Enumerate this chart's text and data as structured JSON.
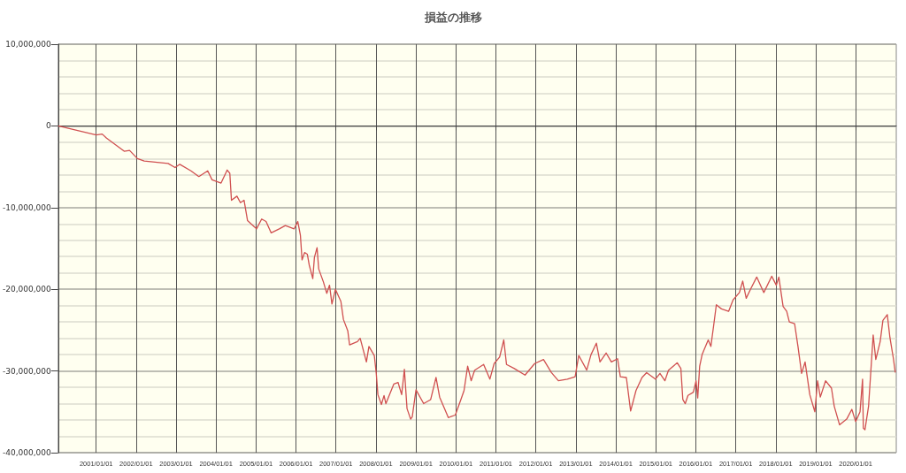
{
  "chart_data": {
    "type": "line",
    "title": "損益の推移",
    "grid": true,
    "marker": "none",
    "line_style": "solid",
    "xlim": [
      "2000-01-20",
      "2021-01-06"
    ],
    "xticks": [
      {
        "value": "2001-01-01",
        "label": "2001/01/01"
      },
      {
        "value": "2002-01-01",
        "label": "2002/01/01"
      },
      {
        "value": "2003-01-01",
        "label": "2003/01/01"
      },
      {
        "value": "2004-01-01",
        "label": "2004/01/01"
      },
      {
        "value": "2005-01-01",
        "label": "2005/01/01"
      },
      {
        "value": "2006-01-01",
        "label": "2006/01/01"
      },
      {
        "value": "2007-01-01",
        "label": "2007/01/01"
      },
      {
        "value": "2008-01-01",
        "label": "2008/01/01"
      },
      {
        "value": "2009-01-01",
        "label": "2009/01/01"
      },
      {
        "value": "2010-01-01",
        "label": "2010/01/01"
      },
      {
        "value": "2011-01-01",
        "label": "2011/01/01"
      },
      {
        "value": "2012-01-01",
        "label": "2012/01/01"
      },
      {
        "value": "2013-01-01",
        "label": "2013/01/01"
      },
      {
        "value": "2014-01-01",
        "label": "2014/01/01"
      },
      {
        "value": "2015-01-01",
        "label": "2015/01/01"
      },
      {
        "value": "2016-01-01",
        "label": "2016/01/01"
      },
      {
        "value": "2017-01-01",
        "label": "2017/01/01"
      },
      {
        "value": "2018-01-01",
        "label": "2018/01/01"
      },
      {
        "value": "2019-01-01",
        "label": "2019/01/01"
      },
      {
        "value": "2020-01-01",
        "label": "2020/01/01"
      }
    ],
    "ylim": [
      -40000000,
      10000000
    ],
    "yticks": [
      {
        "value": -40000000,
        "label": "-40,000,000"
      },
      {
        "value": -38000000,
        "label": null
      },
      {
        "value": -36000000,
        "label": null
      },
      {
        "value": -34000000,
        "label": null
      },
      {
        "value": -32000000,
        "label": null
      },
      {
        "value": -30000000,
        "label": "-30,000,000"
      },
      {
        "value": -28000000,
        "label": null
      },
      {
        "value": -26000000,
        "label": null
      },
      {
        "value": -24000000,
        "label": null
      },
      {
        "value": -22000000,
        "label": null
      },
      {
        "value": -20000000,
        "label": "-20,000,000"
      },
      {
        "value": -18000000,
        "label": null
      },
      {
        "value": -16000000,
        "label": null
      },
      {
        "value": -14000000,
        "label": null
      },
      {
        "value": -12000000,
        "label": null
      },
      {
        "value": -10000000,
        "label": "-10,000,000"
      },
      {
        "value": -8000000,
        "label": null
      },
      {
        "value": -6000000,
        "label": null
      },
      {
        "value": -4000000,
        "label": null
      },
      {
        "value": -2000000,
        "label": null
      },
      {
        "value": 0,
        "label": "0"
      },
      {
        "value": 2000000,
        "label": null
      },
      {
        "value": 4000000,
        "label": null
      },
      {
        "value": 6000000,
        "label": null
      },
      {
        "value": 8000000,
        "label": null
      },
      {
        "value": 10000000,
        "label": "10,000,000"
      }
    ],
    "x": [
      "2000-01-20",
      "2001-01-01",
      "2001-02-25",
      "2001-04-06",
      "2001-09-14",
      "2001-11-02",
      "2002-01-13",
      "2002-03-16",
      "2002-10-20",
      "2002-12-23",
      "2003-02-04",
      "2003-05-17",
      "2003-07-28",
      "2003-10-17",
      "2003-11-26",
      "2004-02-16",
      "2004-04-12",
      "2004-05-06",
      "2004-05-21",
      "2004-07-10",
      "2004-08-11",
      "2004-09-13",
      "2004-10-15",
      "2005-01-05",
      "2005-02-21",
      "2005-04-02",
      "2005-05-19",
      "2005-08-01",
      "2005-09-25",
      "2005-12-15",
      "2006-01-17",
      "2006-02-10",
      "2006-02-25",
      "2006-03-20",
      "2006-04-14",
      "2006-05-01",
      "2006-06-03",
      "2006-06-18",
      "2006-07-12",
      "2006-07-27",
      "2006-09-08",
      "2006-10-09",
      "2006-11-03",
      "2006-11-25",
      "2006-12-27",
      "2007-02-15",
      "2007-03-10",
      "2007-04-19",
      "2007-05-05",
      "2007-07-16",
      "2007-08-10",
      "2007-10-06",
      "2007-10-29",
      "2007-12-17",
      "2008-01-04",
      "2008-01-19",
      "2008-02-20",
      "2008-03-15",
      "2008-04-01",
      "2008-06-12",
      "2008-07-21",
      "2008-08-23",
      "2008-09-17",
      "2008-10-11",
      "2008-11-13",
      "2008-11-28",
      "2009-01-01",
      "2009-03-12",
      "2009-05-15",
      "2009-07-03",
      "2009-08-05",
      "2009-10-01",
      "2009-10-23",
      "2009-12-26",
      "2010-02-15",
      "2010-03-16",
      "2010-04-18",
      "2010-05-20",
      "2010-06-21",
      "2010-09-11",
      "2010-11-07",
      "2010-12-16",
      "2011-02-04",
      "2011-03-14",
      "2011-04-08",
      "2011-06-19",
      "2011-09-24",
      "2011-12-21",
      "2012-03-11",
      "2012-05-22",
      "2012-07-25",
      "2012-10-15",
      "2012-12-25",
      "2013-01-27",
      "2013-04-10",
      "2013-05-19",
      "2013-07-07",
      "2013-08-09",
      "2013-10-04",
      "2013-11-21",
      "2014-01-17",
      "2014-02-11",
      "2014-04-07",
      "2014-05-16",
      "2014-07-04",
      "2014-08-28",
      "2014-10-09",
      "2014-12-28",
      "2015-02-08",
      "2015-03-25",
      "2015-04-27",
      "2015-07-16",
      "2015-08-18",
      "2015-09-05",
      "2015-09-27",
      "2015-10-22",
      "2015-12-10",
      "2016-01-04",
      "2016-01-19",
      "2016-02-06",
      "2016-02-28",
      "2016-04-24",
      "2016-05-18",
      "2016-06-12",
      "2016-07-07",
      "2016-08-23",
      "2016-10-27",
      "2016-12-07",
      "2017-02-03",
      "2017-03-05",
      "2017-04-06",
      "2017-05-15",
      "2017-07-11",
      "2017-09-14",
      "2017-11-25",
      "2018-01-06",
      "2018-01-29",
      "2018-03-09",
      "2018-04-11",
      "2018-05-05",
      "2018-06-22",
      "2018-07-23",
      "2018-08-25",
      "2018-09-26",
      "2018-11-08",
      "2018-12-24",
      "2019-01-18",
      "2019-02-12",
      "2019-04-01",
      "2019-05-25",
      "2019-06-19",
      "2019-08-07",
      "2019-10-11",
      "2019-11-27",
      "2020-01-01",
      "2020-02-10",
      "2020-03-04",
      "2020-03-11",
      "2020-03-26",
      "2020-04-28",
      "2020-06-09",
      "2020-07-03",
      "2020-08-12",
      "2020-09-06",
      "2020-10-16",
      "2020-11-09",
      "2020-12-11",
      "2020-12-28"
    ],
    "series": [
      {
        "color": "#d05050",
        "values": [
          0,
          -1100000,
          -1000000,
          -1500000,
          -3100000,
          -3000000,
          -4000000,
          -4300000,
          -4600000,
          -5100000,
          -4700000,
          -5500000,
          -6200000,
          -5500000,
          -6600000,
          -7000000,
          -5400000,
          -5800000,
          -9100000,
          -8600000,
          -9400000,
          -9100000,
          -11600000,
          -12600000,
          -11400000,
          -11700000,
          -13100000,
          -12600000,
          -12200000,
          -12600000,
          -11700000,
          -13400000,
          -16400000,
          -15500000,
          -15700000,
          -17000000,
          -18700000,
          -16100000,
          -14900000,
          -17500000,
          -19100000,
          -20500000,
          -19500000,
          -21800000,
          -20000000,
          -21500000,
          -23700000,
          -25100000,
          -26800000,
          -26400000,
          -26000000,
          -28900000,
          -27000000,
          -28100000,
          -30300000,
          -32900000,
          -34100000,
          -33000000,
          -34000000,
          -31600000,
          -31400000,
          -32900000,
          -29800000,
          -34600000,
          -35900000,
          -35600000,
          -32300000,
          -34000000,
          -33500000,
          -30800000,
          -33200000,
          -35000000,
          -35700000,
          -35400000,
          -33500000,
          -32400000,
          -29400000,
          -31200000,
          -29900000,
          -29200000,
          -31000000,
          -29100000,
          -28300000,
          -26200000,
          -29200000,
          -29700000,
          -30500000,
          -29100000,
          -28600000,
          -30200000,
          -31200000,
          -31000000,
          -30700000,
          -28100000,
          -29900000,
          -28000000,
          -26600000,
          -28900000,
          -27800000,
          -28900000,
          -28500000,
          -30700000,
          -30800000,
          -34900000,
          -32400000,
          -30800000,
          -30200000,
          -31000000,
          -30300000,
          -31200000,
          -29900000,
          -29000000,
          -29700000,
          -33500000,
          -34000000,
          -33000000,
          -32600000,
          -31200000,
          -33300000,
          -29400000,
          -28000000,
          -26200000,
          -27000000,
          -24500000,
          -21900000,
          -22400000,
          -22700000,
          -21300000,
          -20400000,
          -19000000,
          -21100000,
          -20000000,
          -18500000,
          -20400000,
          -18400000,
          -19500000,
          -18500000,
          -22100000,
          -22700000,
          -24000000,
          -24200000,
          -27000000,
          -30300000,
          -28900000,
          -32900000,
          -35000000,
          -31200000,
          -33200000,
          -31200000,
          -32100000,
          -34300000,
          -36600000,
          -35900000,
          -34700000,
          -36200000,
          -35000000,
          -31000000,
          -37000000,
          -37200000,
          -34300000,
          -25600000,
          -28600000,
          -26400000,
          -23800000,
          -23100000,
          -25900000,
          -28500000,
          -30200000
        ]
      }
    ]
  }
}
